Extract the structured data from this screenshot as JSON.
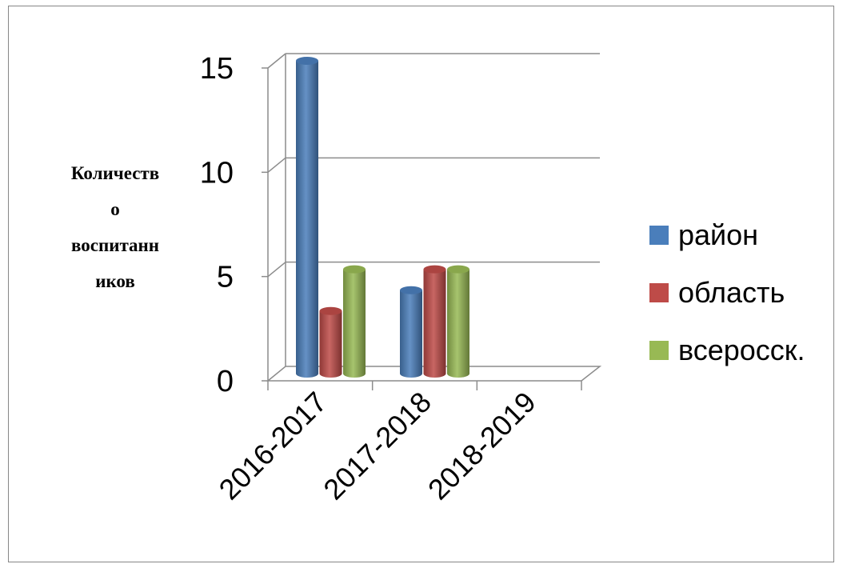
{
  "chart_data": {
    "type": "bar",
    "categories": [
      "2016-2017",
      "2017-2018",
      "2018-2019"
    ],
    "series": [
      {
        "name": "район",
        "values": [
          15,
          4,
          0
        ],
        "color": "#4a7ebb"
      },
      {
        "name": "область",
        "values": [
          3,
          5,
          0
        ],
        "color": "#be4b48"
      },
      {
        "name": "всеросск.",
        "values": [
          5,
          5,
          0
        ],
        "color": "#98b954"
      }
    ],
    "ylabel_lines": [
      "Количеств",
      "о",
      "воспитанн",
      "иков"
    ],
    "yticks": [
      "0",
      "5",
      "10",
      "15"
    ],
    "ylim": [
      0,
      15
    ],
    "grid": true,
    "legend_position": "right",
    "style": "3d-cylinder"
  }
}
